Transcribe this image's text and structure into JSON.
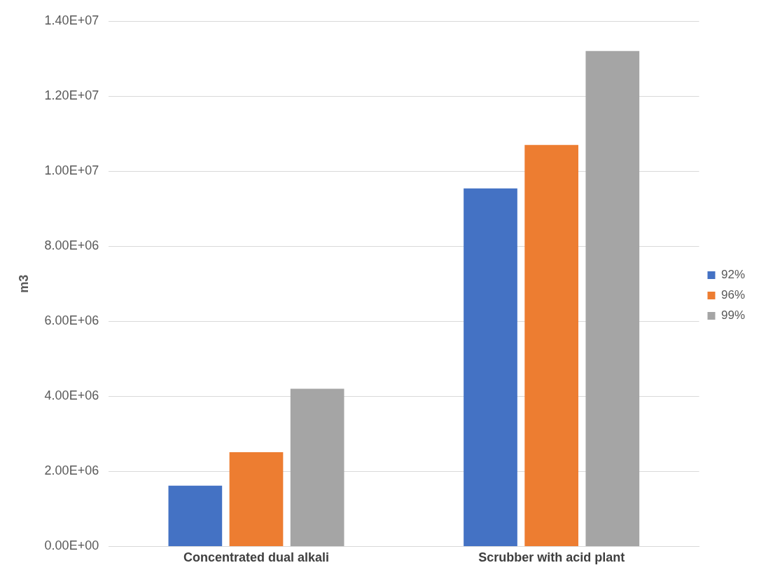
{
  "chart_data": {
    "type": "bar",
    "ylabel": "m3",
    "categories": [
      "Concentrated dual alkali",
      "Scrubber with acid plant"
    ],
    "series": [
      {
        "name": "92%",
        "color": "#4472c4",
        "values": [
          1620000,
          9540000
        ]
      },
      {
        "name": "96%",
        "color": "#ed7d31",
        "values": [
          2510000,
          10700000
        ]
      },
      {
        "name": "99%",
        "color": "#a5a5a5",
        "values": [
          4200000,
          13200000
        ]
      }
    ],
    "ylim": [
      0,
      14000000
    ],
    "yticks": [
      {
        "value": 0,
        "label": "0.00E+00"
      },
      {
        "value": 2000000,
        "label": "2.00E+06"
      },
      {
        "value": 4000000,
        "label": "4.00E+06"
      },
      {
        "value": 6000000,
        "label": "6.00E+06"
      },
      {
        "value": 8000000,
        "label": "8.00E+06"
      },
      {
        "value": 10000000,
        "label": "1.00E+07"
      },
      {
        "value": 12000000,
        "label": "1.20E+07"
      },
      {
        "value": 14000000,
        "label": "1.40E+07"
      }
    ],
    "grid": "y",
    "legend": "right"
  }
}
